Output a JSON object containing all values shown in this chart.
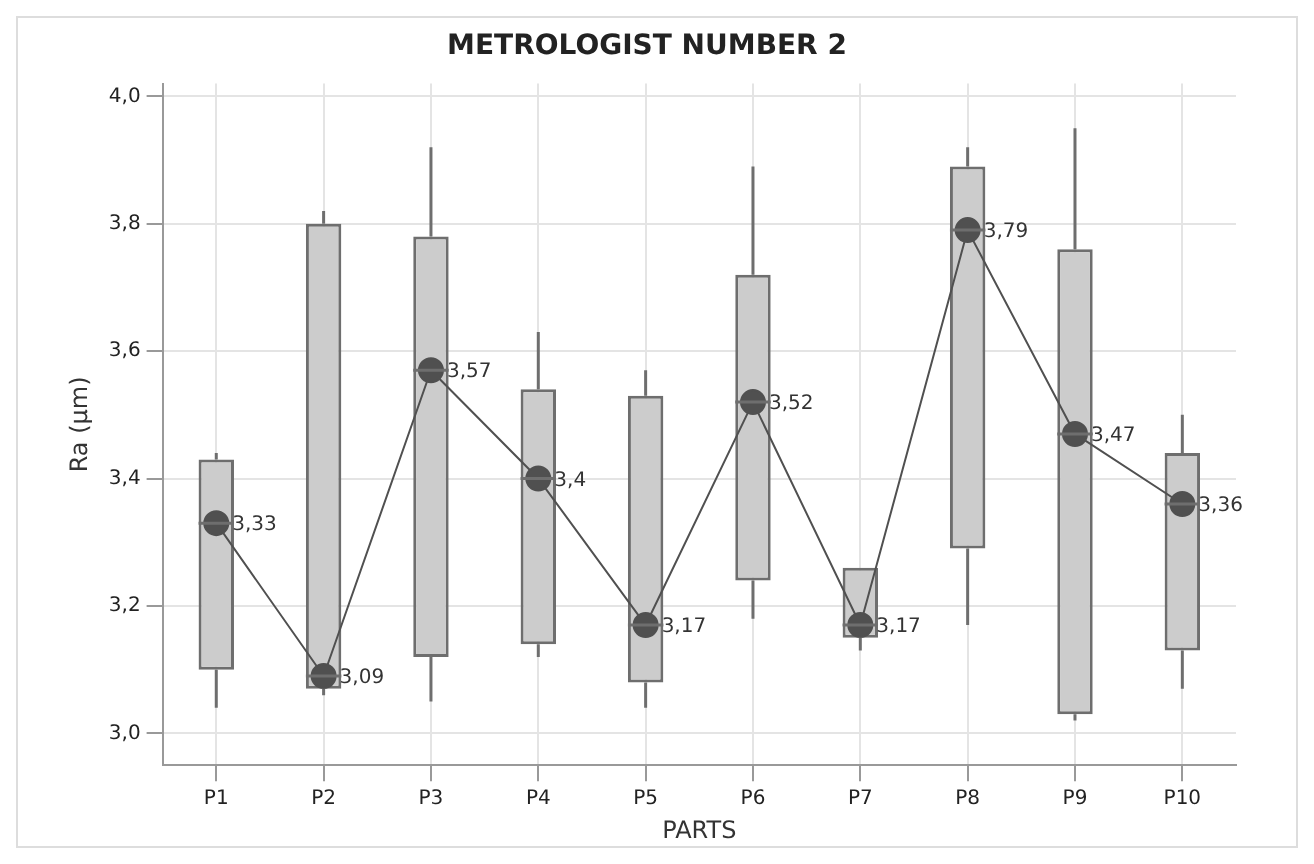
{
  "chart_data": {
    "type": "box",
    "title": "METROLOGIST NUMBER 2",
    "xlabel": "PARTS",
    "ylabel": "Ra (µm)",
    "categories": [
      "P1",
      "P2",
      "P3",
      "P4",
      "P5",
      "P6",
      "P7",
      "P8",
      "P9",
      "P10"
    ],
    "color": "#cccccc",
    "boxes": [
      {
        "low": 3.04,
        "q1": 3.1,
        "median": 3.33,
        "q3": 3.43,
        "high": 3.44
      },
      {
        "low": 3.06,
        "q1": 3.07,
        "median": 3.09,
        "q3": 3.8,
        "high": 3.82
      },
      {
        "low": 3.05,
        "q1": 3.12,
        "median": 3.57,
        "q3": 3.78,
        "high": 3.92
      },
      {
        "low": 3.12,
        "q1": 3.14,
        "median": 3.4,
        "q3": 3.54,
        "high": 3.63
      },
      {
        "low": 3.04,
        "q1": 3.08,
        "median": 3.17,
        "q3": 3.53,
        "high": 3.57
      },
      {
        "low": 3.18,
        "q1": 3.24,
        "median": 3.52,
        "q3": 3.72,
        "high": 3.89
      },
      {
        "low": 3.13,
        "q1": 3.15,
        "median": 3.17,
        "q3": 3.26,
        "high": 3.26
      },
      {
        "low": 3.17,
        "q1": 3.29,
        "median": 3.79,
        "q3": 3.89,
        "high": 3.92
      },
      {
        "low": 3.02,
        "q1": 3.03,
        "median": 3.47,
        "q3": 3.76,
        "high": 3.95
      },
      {
        "low": 3.07,
        "q1": 3.13,
        "median": 3.36,
        "q3": 3.44,
        "high": 3.5
      }
    ],
    "series": [
      {
        "type": "line",
        "color": "#505050",
        "marker": "circle",
        "values": [
          3.33,
          3.09,
          3.57,
          3.4,
          3.17,
          3.52,
          3.17,
          3.79,
          3.47,
          3.36
        ],
        "value_labels": [
          "3,33",
          "3,09",
          "3,57",
          "3,4",
          "3,17",
          "3,52",
          "3,17",
          "3,79",
          "3,47",
          "3,36"
        ]
      }
    ],
    "ylim": [
      2.95,
      4.02
    ],
    "yticks": [
      {
        "value": 3.0,
        "label": "3,0"
      },
      {
        "value": 3.2,
        "label": "3,2"
      },
      {
        "value": 3.4,
        "label": "3,4"
      },
      {
        "value": 3.6,
        "label": "3,6"
      },
      {
        "value": 3.8,
        "label": "3,8"
      },
      {
        "value": 4.0,
        "label": "4,0"
      }
    ],
    "grid": true
  }
}
